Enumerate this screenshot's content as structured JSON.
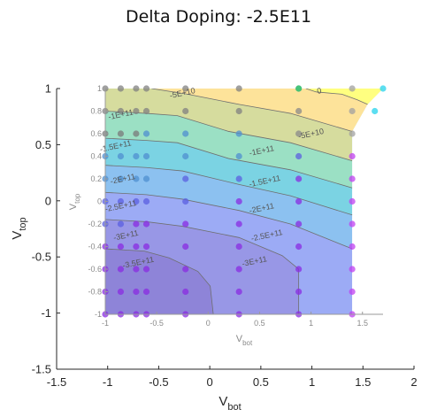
{
  "chart_data": {
    "type": "contour",
    "title": "Delta Doping: -2.5E11",
    "outer_axes": {
      "xlabel_main": "V",
      "xlabel_sub": "bot",
      "ylabel_main": "V",
      "ylabel_sub": "top",
      "xlim": [
        -1.5,
        2
      ],
      "ylim": [
        -1.5,
        1
      ],
      "xticks": [
        "-1.5",
        "-1",
        "-0.5",
        "0",
        "0.5",
        "1",
        "1.5",
        "2"
      ],
      "yticks": [
        "-1.5",
        "-1",
        "-0.5",
        "0",
        "0.5",
        "1"
      ]
    },
    "inner_axes": {
      "xlabel_main": "V",
      "xlabel_sub": "bot",
      "ylabel_main": "V",
      "ylabel_sub": "top",
      "xlim": [
        -1,
        1.7
      ],
      "ylim": [
        -1,
        1
      ],
      "xticks": [
        "-1",
        "-0.5",
        "0",
        "0.5",
        "1",
        "1.5"
      ],
      "yticks": [
        "-1",
        "-0.8",
        "-0.6",
        "-0.4",
        "-0.2",
        "0",
        "0.2",
        "0.4",
        "0.6",
        "0.8",
        "1"
      ]
    },
    "contour_levels": [
      {
        "label": "-3.5E+11",
        "level": -350000000000.0
      },
      {
        "label": "-3E+11",
        "level": -300000000000.0
      },
      {
        "label": "-2.5E+11",
        "level": -250000000000.0
      },
      {
        "label": "-2E+11",
        "level": -200000000000.0
      },
      {
        "label": "-1.5E+11",
        "level": -150000000000.0
      },
      {
        "label": "-1E+11",
        "level": -100000000000.0
      },
      {
        "label": "-5E+10",
        "level": -50000000000.0
      },
      {
        "label": "0",
        "level": 0
      }
    ],
    "contour_labels": [
      {
        "text": "-5E+10",
        "x": -0.25,
        "y": 0.96
      },
      {
        "text": "0",
        "x": 1.08,
        "y": 0.98
      },
      {
        "text": "-1E+11",
        "x": -0.85,
        "y": 0.77
      },
      {
        "text": "-5E+10",
        "x": 1.0,
        "y": 0.6
      },
      {
        "text": "-1.5E+11",
        "x": -0.9,
        "y": 0.49
      },
      {
        "text": "-1E+11",
        "x": 0.52,
        "y": 0.45
      },
      {
        "text": "-2E+11",
        "x": -0.83,
        "y": 0.2
      },
      {
        "text": "-1.5E+11",
        "x": 0.55,
        "y": 0.18
      },
      {
        "text": "-2.5E+11",
        "x": -0.85,
        "y": -0.04
      },
      {
        "text": "-2E+11",
        "x": 0.52,
        "y": -0.06
      },
      {
        "text": "-3E+11",
        "x": -0.8,
        "y": -0.3
      },
      {
        "text": "-2.5E+11",
        "x": 0.57,
        "y": -0.3
      },
      {
        "text": "-3.5E+11",
        "x": -0.68,
        "y": -0.54
      },
      {
        "text": "-3E+11",
        "x": 0.45,
        "y": -0.53
      }
    ],
    "sample_points_x": [
      -1,
      -0.85,
      -0.7,
      -0.6,
      -0.22,
      0.3,
      0.88,
      1.4
    ],
    "sample_points_y": [
      -1,
      -0.8,
      -0.6,
      -0.4,
      -0.2,
      0,
      0.2,
      0.4,
      0.6,
      0.8,
      1
    ],
    "extra_points": [
      {
        "x": 1.62,
        "y": 0.8
      },
      {
        "x": 1.7,
        "y": 1
      }
    ],
    "colors": {
      "band_0": "#8e84d8",
      "band_1": "#9897e6",
      "band_2": "#9cabf5",
      "band_3": "#8cc1f0",
      "band_4": "#7bd3e3",
      "band_5": "#9be0c4",
      "band_6": "#d6dc9e",
      "band_7": "#fde39a",
      "band_8": "#ffff80"
    }
  }
}
